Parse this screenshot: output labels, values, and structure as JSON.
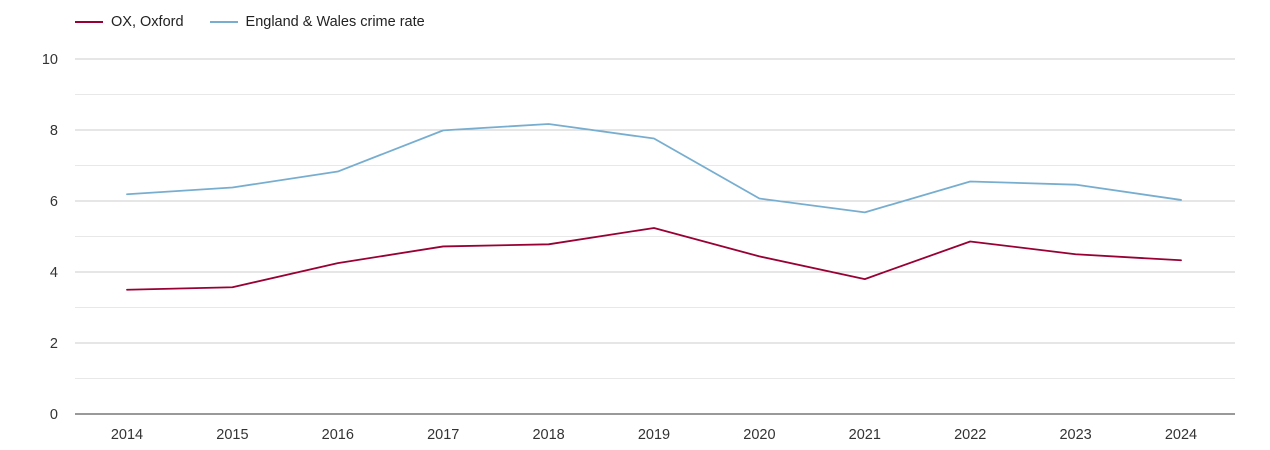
{
  "colors": {
    "series_0": "#990033",
    "series_1": "#77aed0",
    "grid_major": "#cccccc",
    "grid_minor": "#e8e8e8",
    "axis": "#333333"
  },
  "chart_data": {
    "type": "line",
    "title": "",
    "xlabel": "",
    "ylabel": "",
    "categories": [
      "2014",
      "2015",
      "2016",
      "2017",
      "2018",
      "2019",
      "2020",
      "2021",
      "2022",
      "2023",
      "2024"
    ],
    "ylim": [
      0,
      10
    ],
    "yticks": [
      "0",
      "2",
      "4",
      "6",
      "8",
      "10"
    ],
    "grid": true,
    "legend_position": "top-left",
    "series": [
      {
        "name": "OX, Oxford",
        "color": "#990033",
        "values": [
          3.5,
          3.57,
          4.25,
          4.72,
          4.78,
          5.24,
          4.44,
          3.8,
          4.86,
          4.5,
          4.33
        ]
      },
      {
        "name": "England & Wales crime rate",
        "color": "#77aed0",
        "values": [
          6.19,
          6.38,
          6.83,
          7.99,
          8.17,
          7.76,
          6.07,
          5.68,
          6.55,
          6.46,
          6.03
        ]
      }
    ]
  }
}
